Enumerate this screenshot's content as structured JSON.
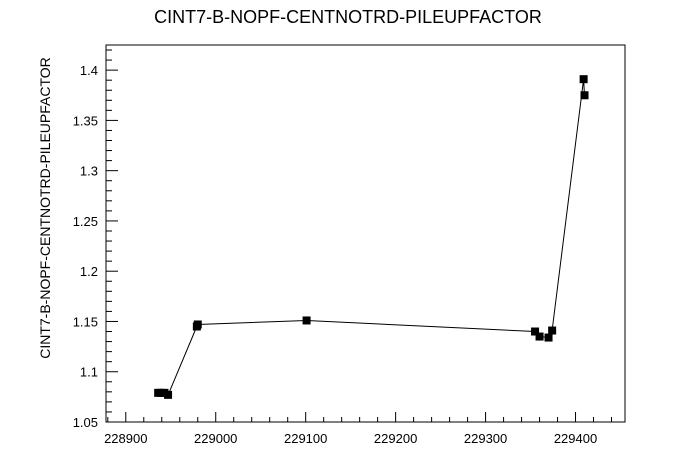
{
  "chart_data": {
    "type": "scatter",
    "title": "CINT7-B-NOPF-CENTNOTRD-PILEUPFACTOR",
    "xlabel": "",
    "ylabel": "CINT7-B-NOPF-CENTNOTRD-PILEUPFACTOR",
    "xlim": [
      228878,
      229455
    ],
    "ylim": [
      1.05,
      1.425
    ],
    "x_ticks": [
      228900,
      229000,
      229100,
      229200,
      229300,
      229400
    ],
    "y_ticks": [
      1.05,
      1.1,
      1.15,
      1.2,
      1.25,
      1.3,
      1.35,
      1.4
    ],
    "x_tick_labels": [
      "228900",
      "229000",
      "229100",
      "229200",
      "229300",
      "229400"
    ],
    "y_tick_labels": [
      "1.05",
      "1.1",
      "1.15",
      "1.2",
      "1.25",
      "1.3",
      "1.35",
      "1.4"
    ],
    "grid": false,
    "connected": true,
    "series": [
      {
        "x": [
          228936,
          228939,
          228943,
          228947,
          228979,
          228980,
          229101,
          229355,
          229360,
          229370,
          229374,
          229409,
          229410
        ],
        "y": [
          1.079,
          1.079,
          1.079,
          1.077,
          1.145,
          1.147,
          1.151,
          1.14,
          1.135,
          1.134,
          1.141,
          1.391,
          1.375
        ]
      }
    ]
  }
}
